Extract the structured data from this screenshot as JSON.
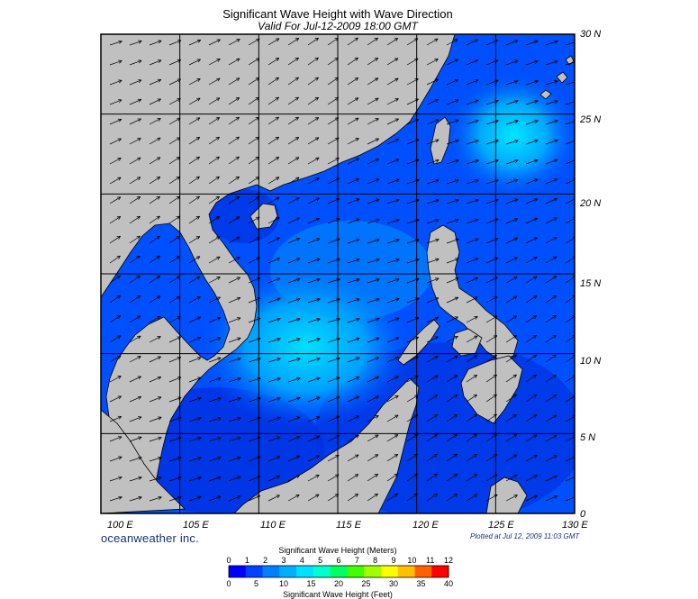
{
  "title": "Significant Wave Height with Wave Direction",
  "subtitle": "Valid For Jul-12-2009 18:00 GMT",
  "brand": "oceanweather inc.",
  "plotted": "Plotted at Jul 12, 2009 11:03 GMT",
  "lat_labels": [
    "30 N",
    "25 N",
    "20 N",
    "15 N",
    "10 N",
    "5 N",
    "0"
  ],
  "lon_labels": [
    "100 E",
    "105 E",
    "110 E",
    "115 E",
    "120 E",
    "125 E",
    "130 E"
  ],
  "colorbar": {
    "title_top": "Significant Wave Height (Meters)",
    "title_bottom": "Significant Wave Height (Feet)",
    "meters_ticks": [
      "0",
      "1",
      "2",
      "3",
      "4",
      "5",
      "6",
      "7",
      "8",
      "9",
      "10",
      "11",
      "12"
    ],
    "feet_ticks": [
      "0",
      "5",
      "10",
      "15",
      "20",
      "25",
      "30",
      "35",
      "40"
    ],
    "colors": [
      "#0000ff",
      "#0040ff",
      "#0080ff",
      "#00b0ff",
      "#00e0ff",
      "#00ffd0",
      "#00ff60",
      "#40ff00",
      "#a0ff00",
      "#ffff00",
      "#ffc000",
      "#ff6000",
      "#ff0000"
    ]
  },
  "colors": {
    "land": "#c0c0c0",
    "sea_dark": "#0a1aa0",
    "sea_mid": "#0050ff",
    "sea_light": "#00c8ff",
    "arrow": "#000000"
  }
}
